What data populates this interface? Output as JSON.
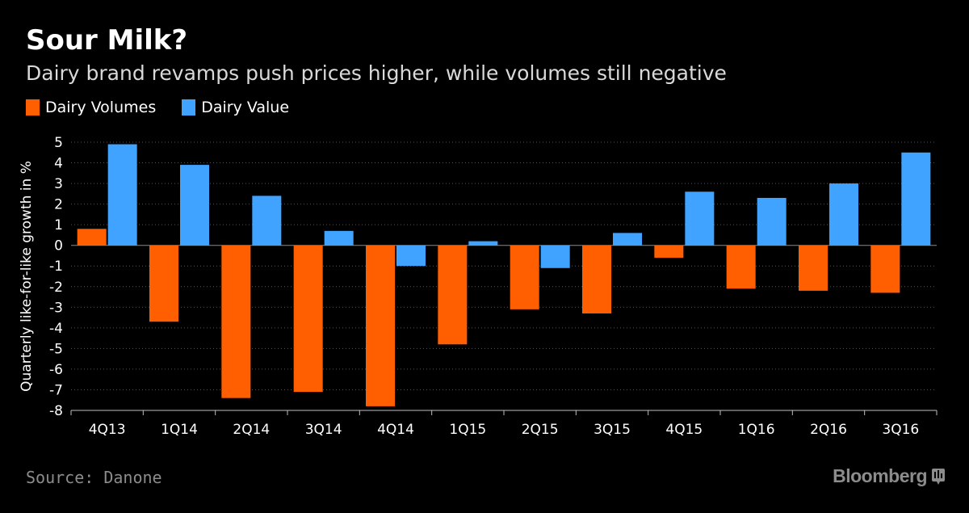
{
  "header": {
    "title": "Sour Milk?",
    "subtitle": "Dairy brand revamps push prices higher, while volumes still negative"
  },
  "footer": {
    "source": "Source: Danone",
    "brand": "Bloomberg",
    "brand_icon": "bloomberg-logo-icon"
  },
  "colors": {
    "background": "#000000",
    "volumes": "#ff5f00",
    "value": "#3fa3ff",
    "grid": "#555555"
  },
  "chart_data": {
    "type": "bar",
    "title": "Sour Milk?",
    "subtitle": "Dairy brand revamps push prices higher, while volumes still negative",
    "xlabel": "",
    "ylabel": "Quarterly like-for-like growth in %",
    "ylim": [
      -8,
      5
    ],
    "yticks": [
      5,
      4,
      3,
      2,
      1,
      0,
      -1,
      -2,
      -3,
      -4,
      -5,
      -6,
      -7,
      -8
    ],
    "grid": true,
    "legend": "top-left",
    "categories": [
      "4Q13",
      "1Q14",
      "2Q14",
      "3Q14",
      "4Q14",
      "1Q15",
      "2Q15",
      "3Q15",
      "4Q15",
      "1Q16",
      "2Q16",
      "3Q16"
    ],
    "series": [
      {
        "name": "Dairy Volumes",
        "color": "#ff5f00",
        "values": [
          0.8,
          -3.7,
          -7.4,
          -7.1,
          -7.8,
          -4.8,
          -3.1,
          -3.3,
          -0.6,
          -2.1,
          -2.2,
          -2.3
        ]
      },
      {
        "name": "Dairy Value",
        "color": "#3fa3ff",
        "values": [
          4.9,
          3.9,
          2.4,
          0.7,
          -1.0,
          0.2,
          -1.1,
          0.6,
          2.6,
          2.3,
          3.0,
          4.5
        ]
      }
    ]
  }
}
